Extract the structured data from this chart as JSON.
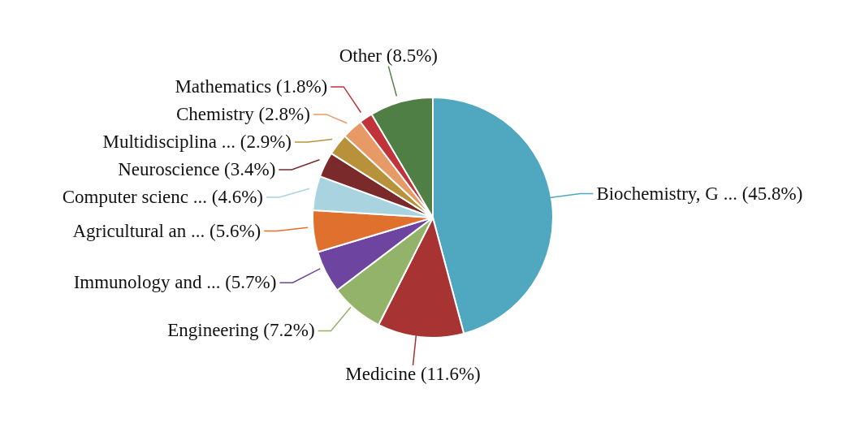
{
  "chart_data": {
    "type": "pie",
    "categories": [
      "Biochemistry, G ...",
      "Medicine",
      "Engineering",
      "Immunology and ...",
      "Agricultural an ...",
      "Computer scienc ...",
      "Neuroscience",
      "Multidisciplina ...",
      "Chemistry",
      "Mathematics",
      "Other"
    ],
    "values": [
      45.8,
      11.6,
      7.2,
      5.7,
      5.6,
      4.6,
      3.4,
      2.9,
      2.8,
      1.8,
      8.5
    ],
    "value_labels": [
      "(45.8%)",
      "(11.6%)",
      "(7.2%)",
      "(5.7%)",
      "(5.6%)",
      "(4.6%)",
      "(3.4%)",
      "(2.9%)",
      "(2.8%)",
      "(1.8%)",
      "(8.5%)"
    ],
    "colors": [
      "#4fa8bf",
      "#a83333",
      "#94b36a",
      "#6d44a0",
      "#e0702e",
      "#a9d4df",
      "#7a2a2a",
      "#b8923a",
      "#e89a66",
      "#c0333a",
      "#4f7f45"
    ],
    "legend": false
  }
}
